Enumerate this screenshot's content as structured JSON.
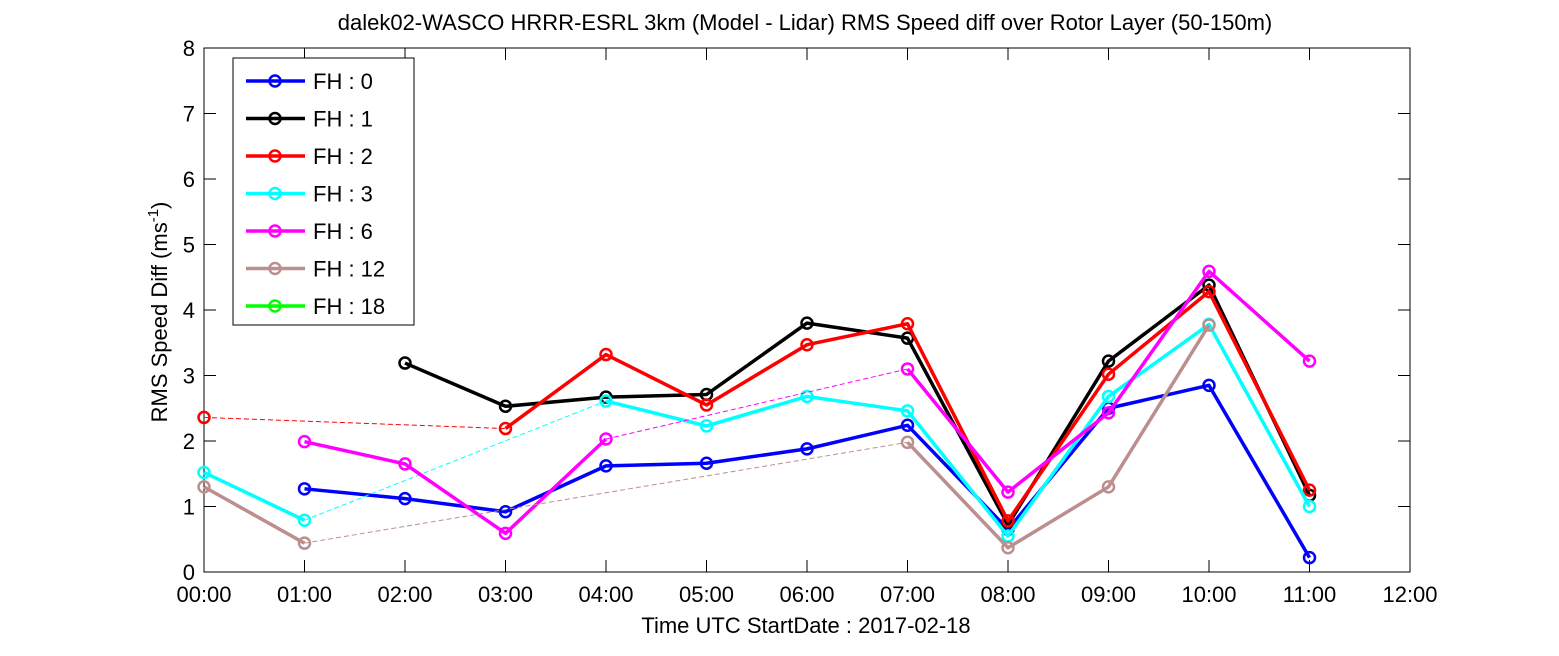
{
  "chart_data": {
    "type": "line",
    "title": "dalek02-WASCO HRRR-ESRL 3km (Model - Lidar) RMS Speed diff over Rotor Layer (50-150m)",
    "xlabel": "Time UTC    StartDate : 2017-02-18",
    "ylabel": "RMS Speed Diff (ms",
    "ylabel_sup": "-1",
    "ylabel_end": ")",
    "xlim": [
      0,
      12
    ],
    "ylim": [
      0,
      8
    ],
    "xticks": [
      0,
      1,
      2,
      3,
      4,
      5,
      6,
      7,
      8,
      9,
      10,
      11,
      12
    ],
    "xtick_labels": [
      "00:00",
      "01:00",
      "02:00",
      "03:00",
      "04:00",
      "05:00",
      "06:00",
      "07:00",
      "08:00",
      "09:00",
      "10:00",
      "11:00",
      "12:00"
    ],
    "yticks": [
      0,
      1,
      2,
      3,
      4,
      5,
      6,
      7,
      8
    ],
    "ytick_labels": [
      "0",
      "1",
      "2",
      "3",
      "4",
      "5",
      "6",
      "7",
      "8"
    ],
    "grid": false,
    "legend_position": "top-left",
    "series": [
      {
        "name": "FH : 0",
        "color": "#0000ff",
        "points": [
          [
            1,
            1.27
          ],
          [
            2,
            1.12
          ],
          [
            3,
            0.92
          ],
          [
            4,
            1.62
          ],
          [
            5,
            1.66
          ],
          [
            6,
            1.88
          ],
          [
            7,
            2.24
          ],
          [
            8,
            0.65
          ],
          [
            9,
            2.5
          ],
          [
            10,
            2.85
          ],
          [
            11,
            0.22
          ]
        ],
        "dashed": []
      },
      {
        "name": "FH : 1",
        "color": "#000000",
        "points": [
          [
            2,
            3.19
          ],
          [
            3,
            2.53
          ],
          [
            4,
            2.67
          ],
          [
            5,
            2.71
          ],
          [
            6,
            3.8
          ],
          [
            7,
            3.57
          ],
          [
            8,
            0.72
          ],
          [
            9,
            3.22
          ],
          [
            10,
            4.38
          ],
          [
            11,
            1.17
          ]
        ],
        "dashed": []
      },
      {
        "name": "FH : 2",
        "color": "#ff0000",
        "points": [
          [
            0,
            2.36
          ],
          [
            3,
            2.19
          ],
          [
            4,
            3.32
          ],
          [
            5,
            2.55
          ],
          [
            6,
            3.47
          ],
          [
            7,
            3.79
          ],
          [
            8,
            0.78
          ],
          [
            9,
            3.02
          ],
          [
            10,
            4.28
          ],
          [
            11,
            1.25
          ]
        ],
        "dashed": [
          [
            0,
            3
          ]
        ]
      },
      {
        "name": "FH : 3",
        "color": "#00ffff",
        "points": [
          [
            0,
            1.52
          ],
          [
            1,
            0.79
          ],
          [
            4,
            2.61
          ],
          [
            5,
            2.23
          ],
          [
            6,
            2.68
          ],
          [
            7,
            2.46
          ],
          [
            8,
            0.55
          ],
          [
            9,
            2.68
          ],
          [
            10,
            3.78
          ],
          [
            11,
            1.0
          ]
        ],
        "dashed": [
          [
            1,
            4
          ]
        ]
      },
      {
        "name": "FH : 6",
        "color": "#ff00ff",
        "points": [
          [
            1,
            1.99
          ],
          [
            2,
            1.65
          ],
          [
            3,
            0.59
          ],
          [
            4,
            2.03
          ],
          [
            7,
            3.1
          ],
          [
            8,
            1.22
          ],
          [
            9,
            2.43
          ],
          [
            10,
            4.59
          ],
          [
            11,
            3.22
          ]
        ],
        "dashed": [
          [
            4,
            7
          ]
        ]
      },
      {
        "name": "FH : 12",
        "color": "#bc8f8f",
        "points": [
          [
            0,
            1.3
          ],
          [
            1,
            0.44
          ],
          [
            7,
            1.98
          ],
          [
            8,
            0.37
          ],
          [
            9,
            1.3
          ],
          [
            10,
            3.77
          ]
        ],
        "dashed": [
          [
            1,
            7
          ]
        ]
      },
      {
        "name": "FH : 18",
        "color": "#00ff00",
        "points": [],
        "dashed": []
      }
    ]
  }
}
